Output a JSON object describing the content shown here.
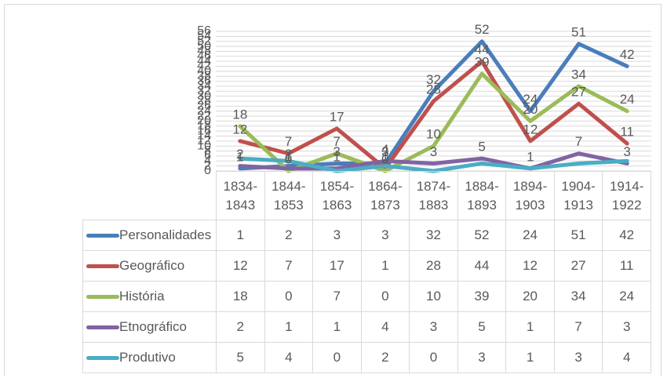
{
  "chart_data": {
    "type": "line",
    "categories": [
      "1834-1843",
      "1844-1853",
      "1854-1863",
      "1864-1873",
      "1874-1883",
      "1884-1893",
      "1894-1903",
      "1904-1913",
      "1914-1922"
    ],
    "series": [
      {
        "name": "Personalidades",
        "color": "#4a7ebb",
        "labels": true,
        "values": [
          1,
          2,
          3,
          3,
          32,
          52,
          24,
          51,
          42
        ]
      },
      {
        "name": "Geográfico",
        "color": "#c0504d",
        "labels": true,
        "values": [
          12,
          7,
          17,
          1,
          28,
          44,
          12,
          27,
          11
        ]
      },
      {
        "name": "História",
        "color": "#9bbb59",
        "labels": true,
        "values": [
          18,
          0,
          7,
          0,
          10,
          39,
          20,
          34,
          24
        ]
      },
      {
        "name": "Etnográfico",
        "color": "#8064a2",
        "labels": true,
        "values": [
          2,
          1,
          1,
          4,
          3,
          5,
          1,
          7,
          3
        ]
      },
      {
        "name": "Produtivo",
        "color": "#4bacc6",
        "labels": false,
        "values": [
          5,
          4,
          0,
          2,
          0,
          3,
          1,
          3,
          4
        ]
      }
    ],
    "ylim": [
      0,
      56
    ],
    "yticks": [
      0,
      2,
      4,
      6,
      8,
      10,
      12,
      14,
      16,
      18,
      20,
      22,
      24,
      26,
      28,
      30,
      32,
      34,
      36,
      38,
      40,
      42,
      44,
      46,
      48,
      50,
      52,
      54,
      56
    ],
    "grid": true
  }
}
